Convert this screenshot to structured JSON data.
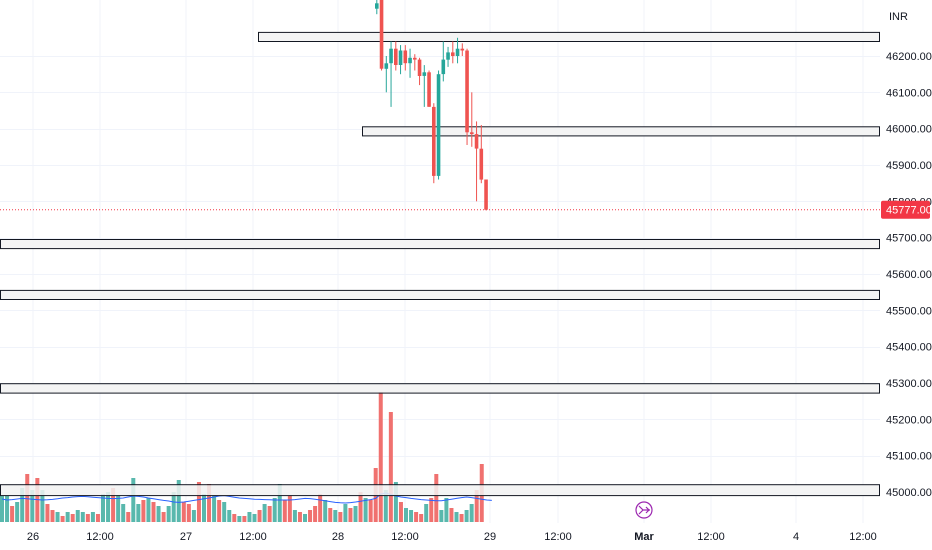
{
  "currency_label": "INR",
  "colors": {
    "up": "#26a69a",
    "down": "#ef5350",
    "vol_up": "#59b8ad",
    "vol_down": "#f0716f",
    "ma": "#2962ff",
    "grid": "#f0f3fa",
    "zone_fill": "#f2f2f2",
    "zone_stroke": "#131722",
    "last_price_bg": "#f23645",
    "event_marker": "#9c27b0"
  },
  "chart_data": {
    "type": "candlestick",
    "title": "",
    "y_axis": {
      "ticks": [
        "46200.00",
        "46100.00",
        "46000.00",
        "45900.00",
        "45800.00",
        "45700.00",
        "45600.00",
        "45500.00",
        "45400.00",
        "45300.00",
        "45200.00",
        "45100.00",
        "45000.00"
      ],
      "range": [
        44960,
        46355
      ]
    },
    "x_axis": {
      "ticks": [
        {
          "label": "26",
          "bold": false
        },
        {
          "label": "12:00",
          "bold": false
        },
        {
          "label": "27",
          "bold": false
        },
        {
          "label": "12:00",
          "bold": false
        },
        {
          "label": "28",
          "bold": false
        },
        {
          "label": "12:00",
          "bold": false
        },
        {
          "label": "29",
          "bold": false
        },
        {
          "label": "12:00",
          "bold": false
        },
        {
          "label": "Mar",
          "bold": true
        },
        {
          "label": "12:00",
          "bold": false
        },
        {
          "label": "4",
          "bold": false
        },
        {
          "label": "12:00",
          "bold": false
        }
      ]
    },
    "last_price": "45777.00",
    "zones": [
      {
        "from": 46240,
        "to": 46265
      },
      {
        "from": 45980,
        "to": 46005
      },
      {
        "from": 45670,
        "to": 45695
      },
      {
        "from": 45530,
        "to": 45555
      },
      {
        "from": 45272,
        "to": 45298
      },
      {
        "from": 44990,
        "to": 45020
      }
    ],
    "candles": [
      {
        "o": 46330,
        "h": 46355,
        "l": 46315,
        "c": 46345
      },
      {
        "o": 46355,
        "h": 46360,
        "l": 46160,
        "c": 46165
      },
      {
        "o": 46165,
        "h": 46200,
        "l": 46100,
        "c": 46180
      },
      {
        "o": 46180,
        "h": 46240,
        "l": 46060,
        "c": 46220
      },
      {
        "o": 46220,
        "h": 46240,
        "l": 46160,
        "c": 46175
      },
      {
        "o": 46175,
        "h": 46230,
        "l": 46150,
        "c": 46215
      },
      {
        "o": 46215,
        "h": 46230,
        "l": 46160,
        "c": 46180
      },
      {
        "o": 46180,
        "h": 46220,
        "l": 46140,
        "c": 46195
      },
      {
        "o": 46195,
        "h": 46205,
        "l": 46160,
        "c": 46190
      },
      {
        "o": 46190,
        "h": 46195,
        "l": 46120,
        "c": 46145
      },
      {
        "o": 46145,
        "h": 46175,
        "l": 46060,
        "c": 46155
      },
      {
        "o": 46155,
        "h": 46160,
        "l": 46060,
        "c": 46060
      },
      {
        "o": 46060,
        "h": 46070,
        "l": 45850,
        "c": 45870
      },
      {
        "o": 45870,
        "h": 46160,
        "l": 45860,
        "c": 46150
      },
      {
        "o": 46150,
        "h": 46240,
        "l": 46130,
        "c": 46190
      },
      {
        "o": 46190,
        "h": 46225,
        "l": 46170,
        "c": 46210
      },
      {
        "o": 46210,
        "h": 46240,
        "l": 46180,
        "c": 46200
      },
      {
        "o": 46200,
        "h": 46250,
        "l": 46180,
        "c": 46220
      },
      {
        "o": 46220,
        "h": 46235,
        "l": 46200,
        "c": 46215
      },
      {
        "o": 46215,
        "h": 46220,
        "l": 45955,
        "c": 45990
      },
      {
        "o": 45990,
        "h": 46100,
        "l": 45950,
        "c": 45985
      },
      {
        "o": 45985,
        "h": 46020,
        "l": 45800,
        "c": 45945
      },
      {
        "o": 45945,
        "h": 46010,
        "l": 45850,
        "c": 45860
      },
      {
        "o": 45860,
        "h": 45860,
        "l": 45775,
        "c": 45777
      }
    ],
    "volume_ma": [
      0.115,
      0.11,
      0.112,
      0.115,
      0.118,
      0.116,
      0.114,
      0.112,
      0.11,
      0.111,
      0.113,
      0.116,
      0.12,
      0.122,
      0.125,
      0.127,
      0.128,
      0.126,
      0.124,
      0.122,
      0.12,
      0.118,
      0.117,
      0.118,
      0.12,
      0.125,
      0.13,
      0.128,
      0.125,
      0.12,
      0.116,
      0.112,
      0.108,
      0.105,
      0.1,
      0.098,
      0.1,
      0.104,
      0.108,
      0.112,
      0.116,
      0.12,
      0.125,
      0.13,
      0.132,
      0.128,
      0.124,
      0.12,
      0.118,
      0.116,
      0.114,
      0.113,
      0.112,
      0.111,
      0.11,
      0.11,
      0.11,
      0.11,
      0.112,
      0.115,
      0.118,
      0.117,
      0.114,
      0.11,
      0.106,
      0.102,
      0.098,
      0.096,
      0.095,
      0.097,
      0.1,
      0.104,
      0.108,
      0.112,
      0.118,
      0.14,
      0.145,
      0.138,
      0.13,
      0.125,
      0.122,
      0.118,
      0.115,
      0.112,
      0.11,
      0.108,
      0.106,
      0.106,
      0.11,
      0.114,
      0.118,
      0.122,
      0.125,
      0.122,
      0.118,
      0.114,
      0.11,
      0.108
    ],
    "volume": [
      {
        "v": 0.13,
        "up": true
      },
      {
        "v": 0.13,
        "up": true
      },
      {
        "v": 0.08,
        "up": false
      },
      {
        "v": 0.1,
        "up": true
      },
      {
        "v": 0.17,
        "up": true
      },
      {
        "v": 0.24,
        "up": false
      },
      {
        "v": 0.16,
        "up": true
      },
      {
        "v": 0.22,
        "up": false
      },
      {
        "v": 0.16,
        "up": true
      },
      {
        "v": 0.09,
        "up": false
      },
      {
        "v": 0.06,
        "up": false
      },
      {
        "v": 0.05,
        "up": true
      },
      {
        "v": 0.03,
        "up": false
      },
      {
        "v": 0.05,
        "up": true
      },
      {
        "v": 0.04,
        "up": false
      },
      {
        "v": 0.06,
        "up": true
      },
      {
        "v": 0.05,
        "up": true
      },
      {
        "v": 0.04,
        "up": false
      },
      {
        "v": 0.05,
        "up": true
      },
      {
        "v": 0.04,
        "up": false
      },
      {
        "v": 0.14,
        "up": true
      },
      {
        "v": 0.15,
        "up": true
      },
      {
        "v": 0.17,
        "up": false
      },
      {
        "v": 0.13,
        "up": true
      },
      {
        "v": 0.09,
        "up": true
      },
      {
        "v": 0.05,
        "up": false
      },
      {
        "v": 0.22,
        "up": true
      },
      {
        "v": 0.09,
        "up": true
      },
      {
        "v": 0.11,
        "up": false
      },
      {
        "v": 0.12,
        "up": true
      },
      {
        "v": 0.1,
        "up": false
      },
      {
        "v": 0.08,
        "up": true
      },
      {
        "v": 0.05,
        "up": false
      },
      {
        "v": 0.08,
        "up": true
      },
      {
        "v": 0.15,
        "up": true
      },
      {
        "v": 0.21,
        "up": true
      },
      {
        "v": 0.1,
        "up": false
      },
      {
        "v": 0.09,
        "up": false
      },
      {
        "v": 0.06,
        "up": true
      },
      {
        "v": 0.2,
        "up": false
      },
      {
        "v": 0.14,
        "up": true
      },
      {
        "v": 0.19,
        "up": false
      },
      {
        "v": 0.13,
        "up": true
      },
      {
        "v": 0.11,
        "up": false
      },
      {
        "v": 0.1,
        "up": true
      },
      {
        "v": 0.06,
        "up": true
      },
      {
        "v": 0.04,
        "up": false
      },
      {
        "v": 0.03,
        "up": true
      },
      {
        "v": 0.03,
        "up": false
      },
      {
        "v": 0.05,
        "up": true
      },
      {
        "v": 0.04,
        "up": true
      },
      {
        "v": 0.06,
        "up": false
      },
      {
        "v": 0.09,
        "up": true
      },
      {
        "v": 0.08,
        "up": false
      },
      {
        "v": 0.12,
        "up": true
      },
      {
        "v": 0.19,
        "up": true
      },
      {
        "v": 0.11,
        "up": false
      },
      {
        "v": 0.13,
        "up": false
      },
      {
        "v": 0.06,
        "up": true
      },
      {
        "v": 0.05,
        "up": false
      },
      {
        "v": 0.04,
        "up": true
      },
      {
        "v": 0.06,
        "up": false
      },
      {
        "v": 0.08,
        "up": false
      },
      {
        "v": 0.14,
        "up": false
      },
      {
        "v": 0.11,
        "up": true
      },
      {
        "v": 0.07,
        "up": false
      },
      {
        "v": 0.06,
        "up": true
      },
      {
        "v": 0.05,
        "up": false
      },
      {
        "v": 0.09,
        "up": true
      },
      {
        "v": 0.07,
        "up": false
      },
      {
        "v": 0.08,
        "up": true
      },
      {
        "v": 0.15,
        "up": false
      },
      {
        "v": 0.12,
        "up": true
      },
      {
        "v": 0.11,
        "up": false
      },
      {
        "v": 0.27,
        "up": false
      },
      {
        "v": 0.65,
        "up": false
      },
      {
        "v": 0.16,
        "up": true
      },
      {
        "v": 0.55,
        "up": false
      },
      {
        "v": 0.2,
        "up": true
      },
      {
        "v": 0.1,
        "up": false
      },
      {
        "v": 0.07,
        "up": true
      },
      {
        "v": 0.06,
        "up": true
      },
      {
        "v": 0.05,
        "up": false
      },
      {
        "v": 0.04,
        "up": false
      },
      {
        "v": 0.09,
        "up": true
      },
      {
        "v": 0.12,
        "up": false
      },
      {
        "v": 0.24,
        "up": false
      },
      {
        "v": 0.06,
        "up": true
      },
      {
        "v": 0.12,
        "up": true
      },
      {
        "v": 0.07,
        "up": false
      },
      {
        "v": 0.05,
        "up": true
      },
      {
        "v": 0.04,
        "up": false
      },
      {
        "v": 0.06,
        "up": true
      },
      {
        "v": 0.09,
        "up": true
      },
      {
        "v": 0.16,
        "up": false
      },
      {
        "v": 0.29,
        "up": false
      }
    ]
  }
}
